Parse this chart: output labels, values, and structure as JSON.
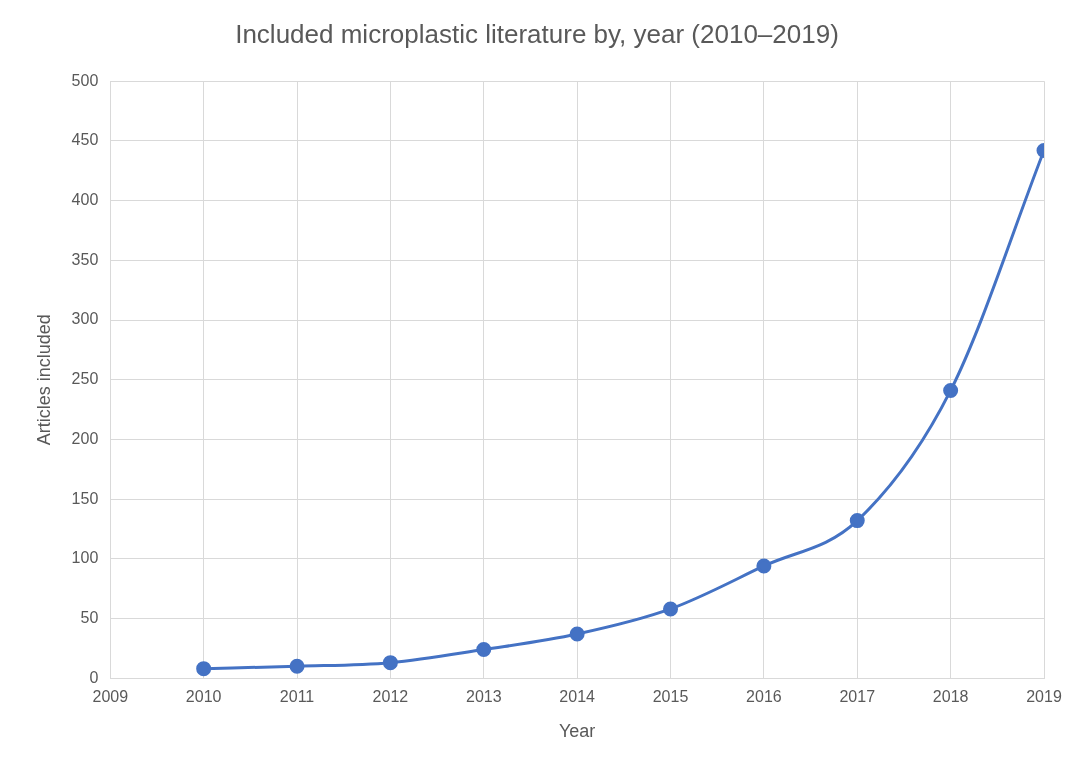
{
  "chart_data": {
    "type": "line",
    "title": "Included microplastic literature by, year (2010–2019)",
    "xlabel": "Year",
    "ylabel": "Articles included",
    "x": [
      2010,
      2011,
      2012,
      2013,
      2014,
      2015,
      2016,
      2017,
      2018,
      2019
    ],
    "series": [
      {
        "color": "#4472c4",
        "values": [
          8,
          10,
          13,
          24,
          37,
          58,
          94,
          132,
          241,
          442
        ]
      }
    ],
    "xlim": [
      2009,
      2019
    ],
    "xticks": [
      2009,
      2010,
      2011,
      2012,
      2013,
      2014,
      2015,
      2016,
      2017,
      2018,
      2019
    ],
    "ylim": [
      0,
      500
    ],
    "yticks": [
      0,
      50,
      100,
      150,
      200,
      250,
      300,
      350,
      400,
      450,
      500
    ],
    "grid": true,
    "legend": false,
    "marker": "circle",
    "line_style": "solid"
  }
}
